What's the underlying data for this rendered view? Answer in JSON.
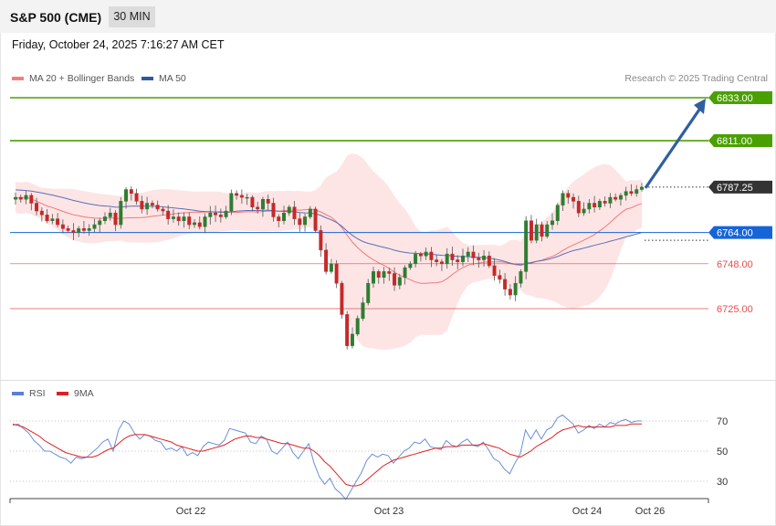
{
  "header": {
    "title": "S&P 500 (CME)",
    "timeframe": "30 MIN"
  },
  "datetime": "Friday, October 24, 2025 7:16:27 AM CET",
  "legend_top": {
    "item1": "MA 20 + Bollinger Bands",
    "item2": "MA 50"
  },
  "credit": "Research © 2025 Trading Central",
  "legend_rsi": {
    "item1": "RSI",
    "item2": "9MA"
  },
  "colors": {
    "resistance": "#4aa000",
    "support": "#1565d8",
    "minor_level": "#e05050",
    "arrow": "#2f5f9e",
    "band_fill": "#fde2e2",
    "ma20": "#f07a7a",
    "ma50": "#5a6fb8",
    "rsi": "#6a8fd8",
    "rsi_ma": "#e02020",
    "bull": "#2e7d32",
    "bear": "#c62828",
    "current": "#333333"
  },
  "chart_data": [
    {
      "type": "candlestick",
      "title": "S&P 500 (CME)",
      "interval": "30 MIN",
      "ylim": [
        6690,
        6855
      ],
      "x_ticks": [
        "Oct 22",
        "Oct 23",
        "Oct 24",
        "Oct 26"
      ],
      "levels": [
        {
          "value": 6833.0,
          "label": "6833.00",
          "kind": "resistance"
        },
        {
          "value": 6811.0,
          "label": "6811.00",
          "kind": "resistance"
        },
        {
          "value": 6787.25,
          "label": "6787.25",
          "kind": "current"
        },
        {
          "value": 6764.0,
          "label": "6764.00",
          "kind": "support"
        },
        {
          "value": 6748.0,
          "label": "6748.00",
          "kind": "minor"
        },
        {
          "value": 6725.0,
          "label": "6725.00",
          "kind": "minor"
        }
      ],
      "closes": [
        6782,
        6781,
        6783,
        6779,
        6775,
        6773,
        6770,
        6771,
        6768,
        6766,
        6765,
        6764,
        6766,
        6765,
        6766,
        6768,
        6770,
        6772,
        6774,
        6768,
        6780,
        6786,
        6784,
        6780,
        6776,
        6779,
        6778,
        6776,
        6775,
        6771,
        6772,
        6770,
        6772,
        6768,
        6769,
        6767,
        6772,
        6774,
        6773,
        6772,
        6775,
        6784,
        6783,
        6782,
        6782,
        6777,
        6776,
        6781,
        6779,
        6772,
        6770,
        6774,
        6777,
        6771,
        6768,
        6772,
        6776,
        6765,
        6755,
        6744,
        6748,
        6738,
        6722,
        6706,
        6712,
        6720,
        6728,
        6738,
        6744,
        6741,
        6744,
        6743,
        6737,
        6741,
        6746,
        6748,
        6753,
        6752,
        6754,
        6750,
        6749,
        6748,
        6753,
        6750,
        6749,
        6752,
        6754,
        6751,
        6750,
        6752,
        6747,
        6742,
        6740,
        6735,
        6732,
        6738,
        6744,
        6770,
        6760,
        6768,
        6762,
        6768,
        6770,
        6778,
        6784,
        6782,
        6780,
        6774,
        6776,
        6779,
        6777,
        6780,
        6779,
        6782,
        6781,
        6783,
        6785,
        6784,
        6786,
        6787.25
      ],
      "ma50_end": 6764,
      "bollinger": {
        "upper_max": 6812,
        "lower_min": 6708
      },
      "projection_target": 6833.0
    },
    {
      "type": "line",
      "title": "RSI",
      "series": [
        {
          "name": "RSI",
          "values": [
            67,
            68,
            65,
            62,
            57,
            54,
            50,
            50,
            48,
            46,
            45,
            42,
            46,
            45,
            46,
            49,
            52,
            56,
            58,
            50,
            64,
            70,
            68,
            62,
            58,
            61,
            60,
            57,
            56,
            51,
            52,
            50,
            53,
            47,
            49,
            47,
            53,
            56,
            55,
            54,
            57,
            65,
            64,
            63,
            62,
            56,
            55,
            60,
            58,
            50,
            48,
            52,
            56,
            49,
            45,
            50,
            55,
            42,
            33,
            28,
            32,
            25,
            22,
            18,
            24,
            30,
            36,
            44,
            48,
            46,
            48,
            47,
            42,
            46,
            50,
            52,
            56,
            55,
            58,
            53,
            52,
            51,
            57,
            54,
            53,
            56,
            58,
            54,
            53,
            56,
            51,
            45,
            43,
            38,
            35,
            42,
            48,
            64,
            58,
            64,
            58,
            64,
            66,
            72,
            74,
            71,
            68,
            62,
            64,
            67,
            65,
            68,
            66,
            69,
            68,
            70,
            71,
            69,
            70,
            70
          ]
        },
        {
          "name": "9MA",
          "values": [
            68,
            67,
            66,
            64,
            62,
            60,
            57,
            55,
            53,
            51,
            49,
            48,
            47,
            46,
            46,
            46,
            47,
            49,
            51,
            52,
            55,
            58,
            60,
            61,
            61,
            61,
            60,
            59,
            58,
            57,
            56,
            54,
            53,
            52,
            51,
            50,
            50,
            51,
            52,
            53,
            54,
            56,
            58,
            59,
            60,
            60,
            59,
            59,
            58,
            57,
            56,
            55,
            55,
            54,
            53,
            52,
            52,
            50,
            47,
            43,
            40,
            36,
            32,
            28,
            27,
            27,
            28,
            31,
            34,
            37,
            40,
            42,
            44,
            45,
            46,
            47,
            48,
            49,
            50,
            51,
            52,
            52,
            53,
            53,
            53,
            54,
            54,
            54,
            54,
            55,
            54,
            53,
            52,
            50,
            48,
            47,
            46,
            48,
            50,
            53,
            55,
            57,
            59,
            62,
            64,
            65,
            66,
            67,
            66,
            66,
            66,
            66,
            66,
            66,
            67,
            67,
            67,
            68,
            68,
            68
          ]
        }
      ],
      "ylim": [
        20,
        80
      ],
      "y_ticks": [
        70,
        50,
        30
      ]
    }
  ]
}
